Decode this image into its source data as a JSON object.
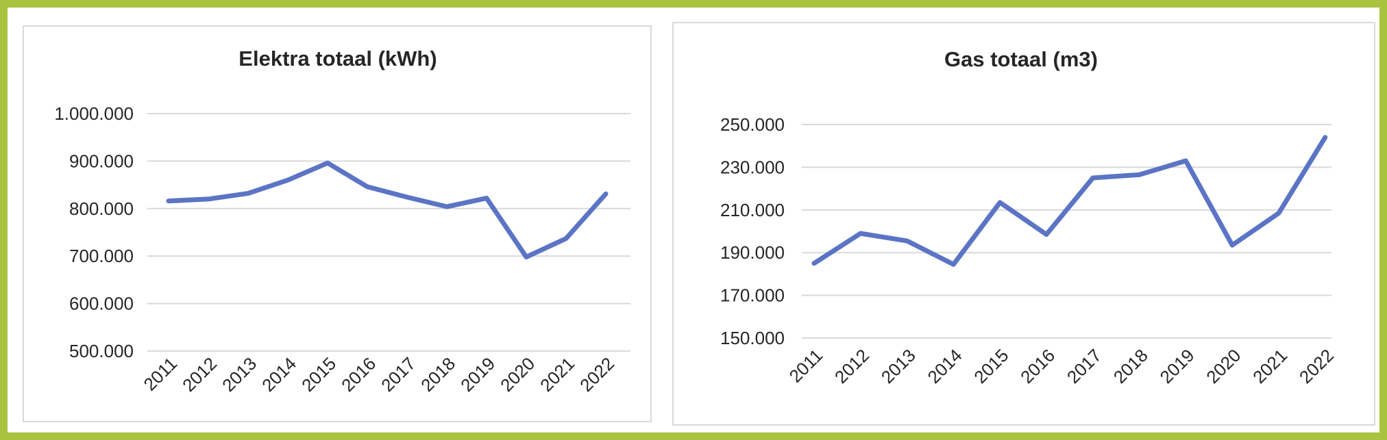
{
  "chart_data": [
    {
      "type": "line",
      "title": "Elektra totaal (kWh)",
      "categories": [
        "2011",
        "2012",
        "2013",
        "2014",
        "2015",
        "2016",
        "2017",
        "2018",
        "2019",
        "2020",
        "2021",
        "2022"
      ],
      "series": [
        {
          "values": [
            816000,
            820000,
            832000,
            860000,
            896000,
            846000,
            824000,
            804000,
            822000,
            698000,
            737000,
            831000
          ]
        }
      ],
      "yticks": [
        "500.000",
        "600.000",
        "700.000",
        "800.000",
        "900.000",
        "1.000.000"
      ],
      "ylim": [
        500000,
        1000000
      ],
      "grid": true,
      "legend": "none",
      "line_color": "#5b74c5"
    },
    {
      "type": "line",
      "title": "Gas totaal (m3)",
      "categories": [
        "2011",
        "2012",
        "2013",
        "2014",
        "2015",
        "2016",
        "2017",
        "2018",
        "2019",
        "2020",
        "2021",
        "2022"
      ],
      "series": [
        {
          "values": [
            185000,
            199000,
            195500,
            184500,
            213500,
            198500,
            225000,
            226500,
            233000,
            193500,
            208500,
            244000
          ]
        }
      ],
      "yticks": [
        "150.000",
        "170.000",
        "190.000",
        "210.000",
        "230.000",
        "250.000"
      ],
      "ylim": [
        150000,
        250000
      ],
      "grid": true,
      "legend": "none",
      "line_color": "#5b74c5"
    }
  ]
}
